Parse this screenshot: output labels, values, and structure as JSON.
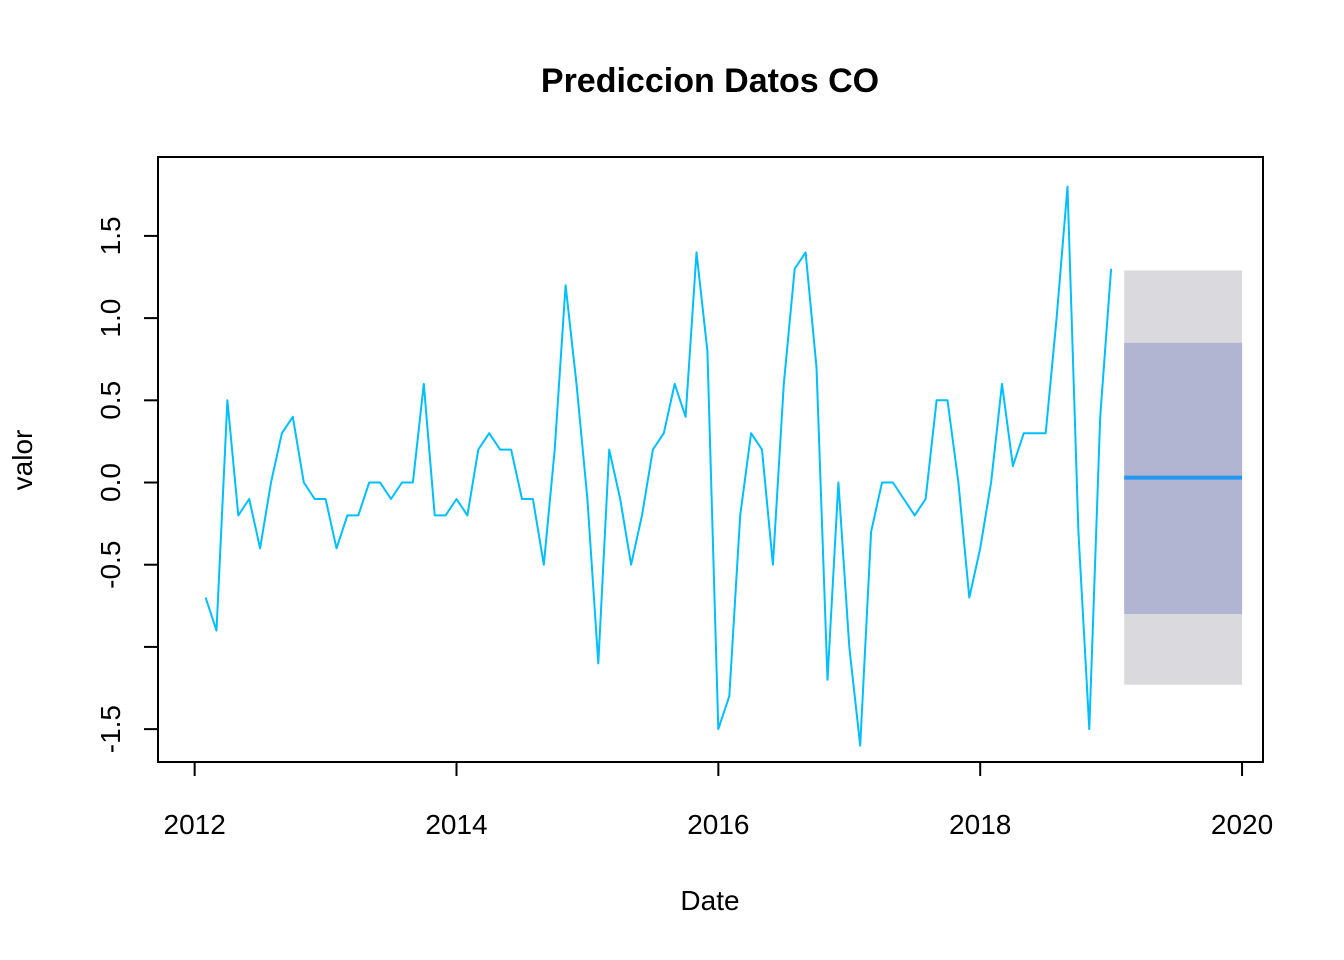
{
  "chart_data": {
    "type": "line",
    "title": "Prediccion Datos CO",
    "xlabel": "Date",
    "ylabel": "valor",
    "xlim": [
      2011.72,
      2020.16
    ],
    "ylim": [
      -1.7,
      1.98
    ],
    "x_ticks": [
      2012,
      2014,
      2016,
      2018,
      2020
    ],
    "x_tick_labels": [
      "2012",
      "2014",
      "2016",
      "2018",
      "2020"
    ],
    "y_ticks": [
      -1.5,
      -1.0,
      -0.5,
      0.0,
      0.5,
      1.0,
      1.5
    ],
    "y_tick_labels": [
      "-1.5",
      "",
      "-0.5",
      "0.0",
      "0.5",
      "1.0",
      "1.5"
    ],
    "grid": false,
    "series": [
      {
        "color": "#00BFFF",
        "x_start": 2012.0833,
        "x_step": 0.083333,
        "values": [
          -0.7,
          -0.9,
          0.5,
          -0.2,
          -0.1,
          -0.4,
          0.0,
          0.3,
          0.4,
          0.0,
          -0.1,
          -0.1,
          -0.4,
          -0.2,
          -0.2,
          0.0,
          0.0,
          -0.1,
          0.0,
          0.0,
          0.6,
          -0.2,
          -0.2,
          -0.1,
          -0.2,
          0.2,
          0.3,
          0.2,
          0.2,
          -0.1,
          -0.1,
          -0.5,
          0.2,
          1.2,
          0.6,
          -0.1,
          -1.1,
          0.2,
          -0.1,
          -0.5,
          -0.2,
          0.2,
          0.3,
          0.6,
          0.4,
          1.4,
          0.8,
          -1.5,
          -1.3,
          -0.2,
          0.3,
          0.2,
          -0.5,
          0.6,
          1.3,
          1.4,
          0.7,
          -1.2,
          0.0,
          -1.0,
          -1.6,
          -0.3,
          0.0,
          0.0,
          -0.1,
          -0.2,
          -0.1,
          0.5,
          0.5,
          0.0,
          -0.7,
          -0.4,
          0.0,
          0.6,
          0.1,
          0.3,
          0.3,
          0.3,
          1.0,
          1.8,
          -0.3,
          -1.5,
          0.4,
          1.3
        ]
      }
    ],
    "forecast": {
      "x_start": 2019.1,
      "x_end": 2020.0,
      "mean": 0.03,
      "band_80": [
        -0.8,
        0.85
      ],
      "band_95": [
        -1.23,
        1.29
      ],
      "color_mean": "#2196F3",
      "color_80": "#B1B5D1",
      "color_95": "#DADADE"
    }
  }
}
